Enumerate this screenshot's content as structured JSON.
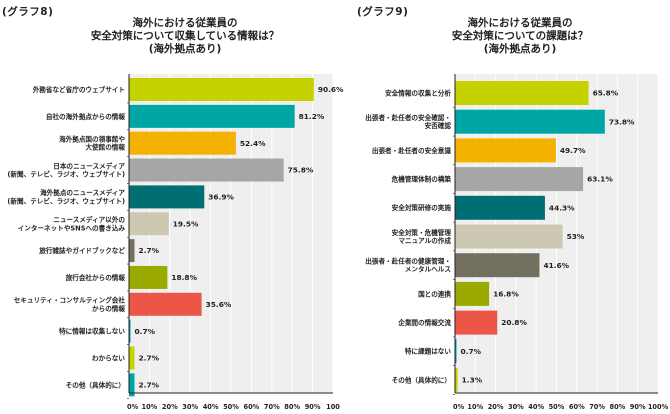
{
  "chart_data": [
    {
      "type": "bar",
      "orientation": "horizontal",
      "graph_number": "(グラフ8)",
      "title_lines": [
        "海外における従業員の",
        "安全対策について収集している情報は？",
        "(海外拠点あり)"
      ],
      "categories": [
        [
          "外務省など省庁のウェブサイト"
        ],
        [
          "自社の海外拠点からの情報"
        ],
        [
          "海外拠点国の領事館や",
          "大使館の情報"
        ],
        [
          "日本のニュースメディア",
          "(新聞、テレビ、ラジオ、ウェブサイト)"
        ],
        [
          "海外拠点のニュースメディア",
          "(新聞、テレビ、ラジオ、ウェブサイト)"
        ],
        [
          "ニュースメディア以外の",
          "インターネットやSNSへの書き込み"
        ],
        [
          "旅行雑誌やガイドブックなど"
        ],
        [
          "旅行会社からの情報"
        ],
        [
          "セキュリティ・コンサルティング会社",
          "からの情報"
        ],
        [
          "特に情報は収集しない"
        ],
        [
          "わからない"
        ],
        [
          "その他（具体的に）"
        ]
      ],
      "values": [
        90.6,
        81.2,
        52.4,
        75.8,
        36.9,
        19.5,
        2.7,
        18.8,
        35.6,
        0.7,
        2.7,
        2.7
      ],
      "value_labels": [
        "90.6%",
        "81.2%",
        "52.4%",
        "75.8%",
        "36.9%",
        "19.5%",
        "2.7%",
        "18.8%",
        "35.6%",
        "0.7%",
        "2.7%",
        "2.7%"
      ],
      "colors": [
        "#c5d200",
        "#00a6a6",
        "#f5b100",
        "#a6a6a6",
        "#006e73",
        "#cdc8b1",
        "#74705f",
        "#9aaa00",
        "#ec5646",
        "#0096b4",
        "#c5d200",
        "#00a6a6"
      ],
      "xlim": [
        0,
        100
      ],
      "x_ticks": [
        "0%",
        "10%",
        "20%",
        "30%",
        "40%",
        "50%",
        "60%",
        "70%",
        "80%",
        "90%",
        "100"
      ],
      "grid": true,
      "xlabel": "",
      "ylabel": ""
    },
    {
      "type": "bar",
      "orientation": "horizontal",
      "graph_number": "(グラフ9)",
      "title_lines": [
        "海外における従業員の",
        "安全対策についての課題は？",
        "(海外拠点あり)"
      ],
      "categories": [
        [
          "安全情報の収集と分析"
        ],
        [
          "出張者・赴任者の安全確認・",
          "安否確認"
        ],
        [
          "出張者・赴任者の安全意識"
        ],
        [
          "危機管理体制の構築"
        ],
        [
          "安全対策研修の実施"
        ],
        [
          "安全対策・危機管理",
          "マニュアルの作成"
        ],
        [
          "出張者・赴任者の健康管理・",
          "メンタルヘルス"
        ],
        [
          "国との連携"
        ],
        [
          "企業間の情報交流"
        ],
        [
          "特に課題はない"
        ],
        [
          "その他（具体的に）"
        ]
      ],
      "values": [
        65.8,
        73.8,
        49.7,
        63.1,
        44.3,
        53,
        41.6,
        16.8,
        20.8,
        0.7,
        1.3
      ],
      "value_labels": [
        "65.8%",
        "73.8%",
        "49.7%",
        "63.1%",
        "44.3%",
        "53%",
        "41.6%",
        "16.8%",
        "20.8%",
        "0.7%",
        "1.3%"
      ],
      "colors": [
        "#c5d200",
        "#00a6a6",
        "#f5b100",
        "#a6a6a6",
        "#006e73",
        "#cdc8b1",
        "#74705f",
        "#9aaa00",
        "#ec5646",
        "#0096b4",
        "#c5d200"
      ],
      "xlim": [
        0,
        100
      ],
      "x_ticks": [
        "0%",
        "10%",
        "20%",
        "30%",
        "40%",
        "50%",
        "60%",
        "70%",
        "80%",
        "90%",
        "100%"
      ],
      "grid": true,
      "xlabel": "",
      "ylabel": ""
    }
  ],
  "style": {
    "plot_background": "#efefef",
    "grid_color": "#ffffff",
    "axis_color": "#231f20",
    "text_color": "#231f20"
  }
}
